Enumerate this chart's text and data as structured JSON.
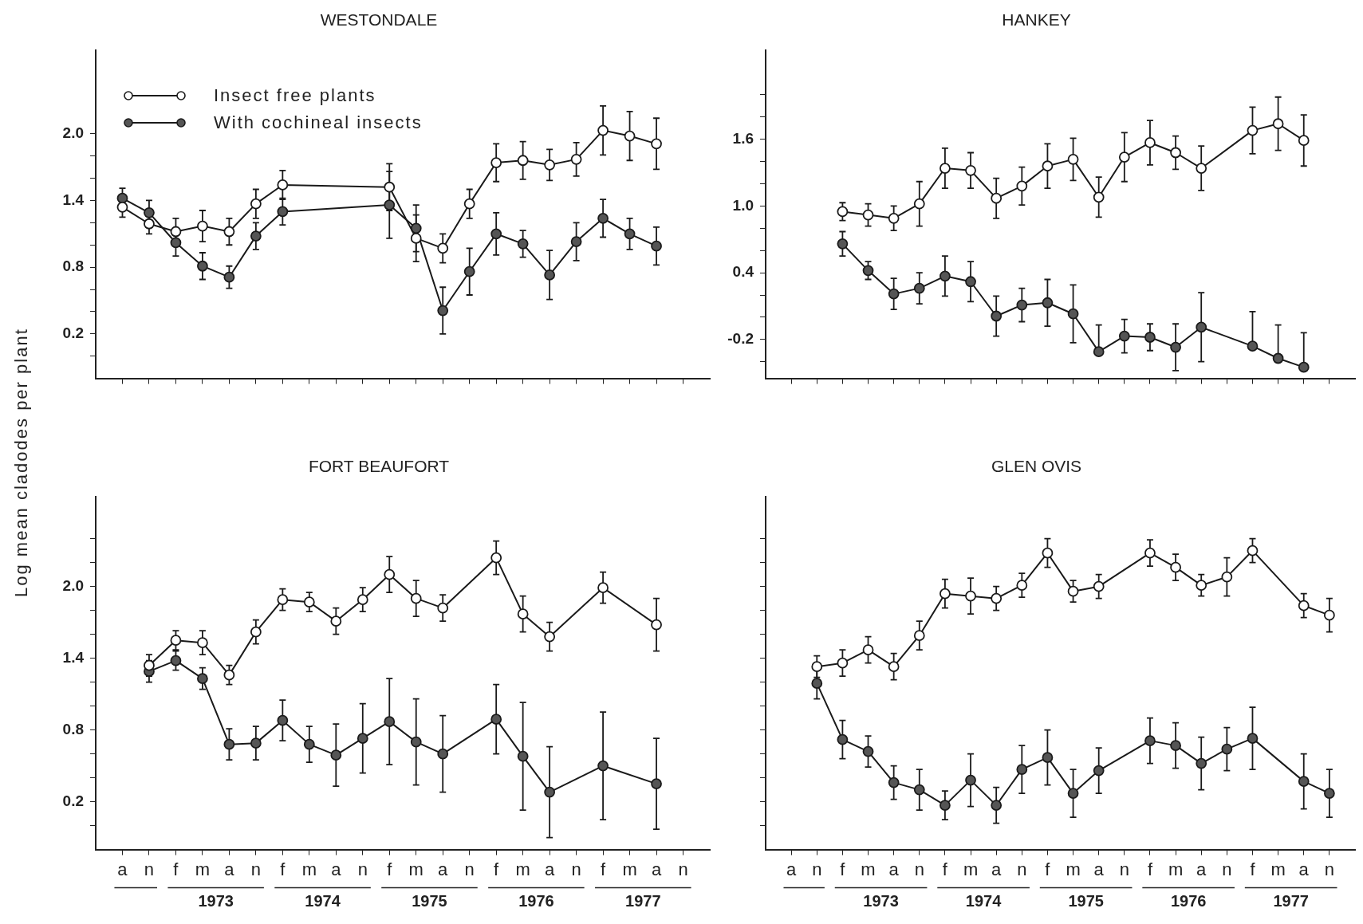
{
  "chart_data": [
    {
      "type": "line",
      "title": "WESTONDALE",
      "ylabel": "Log mean cladodes per plant",
      "legend": "top left",
      "marker": "circle",
      "line_style": "solid",
      "tick_labels": "y",
      "categories": [
        null,
        null,
        null,
        null,
        null,
        null,
        null,
        null,
        null,
        null,
        null,
        null,
        null,
        null,
        null,
        null,
        null,
        null,
        null,
        null,
        null,
        null
      ],
      "ylim": [
        -0.2,
        2.75
      ],
      "yticks": [
        {
          "value": 0,
          "label": null
        },
        {
          "value": 0.2,
          "label": "0.2"
        },
        {
          "value": 0.4,
          "label": null
        },
        {
          "value": 0.6,
          "label": null
        },
        {
          "value": 0.8,
          "label": "0.8"
        },
        {
          "value": 1,
          "label": null
        },
        {
          "value": 1.2,
          "label": null
        },
        {
          "value": 1.4,
          "label": "1.4"
        },
        {
          "value": 1.6,
          "label": null
        },
        {
          "value": 1.8,
          "label": null
        },
        {
          "value": 2,
          "label": "2.0"
        }
      ],
      "series": [
        {
          "name": "Insect free plants",
          "color": "#ffffff",
          "values": [
            1.34,
            1.19,
            1.12,
            1.17,
            1.12,
            1.37,
            1.54,
            null,
            null,
            null,
            1.52,
            1.06,
            0.97,
            1.37,
            1.74,
            1.76,
            1.72,
            1.77,
            2.03,
            1.98,
            1.91,
            null
          ],
          "errors": [
            0.09,
            0.09,
            0.12,
            0.14,
            0.12,
            0.13,
            0.13,
            null,
            null,
            null,
            0.21,
            0.21,
            0.13,
            0.13,
            0.17,
            0.17,
            0.14,
            0.15,
            0.22,
            0.22,
            0.23,
            null
          ]
        },
        {
          "name": "With cochineal insects",
          "color": "#555555",
          "values": [
            1.42,
            1.29,
            1.02,
            0.81,
            0.71,
            1.08,
            1.3,
            null,
            null,
            null,
            1.36,
            1.15,
            0.41,
            0.76,
            1.1,
            1.01,
            0.73,
            1.03,
            1.24,
            1.1,
            0.99,
            null
          ],
          "errors": [
            0.09,
            0.11,
            0.12,
            0.12,
            0.1,
            0.12,
            0.12,
            null,
            null,
            null,
            0.3,
            0.21,
            0.21,
            0.21,
            0.19,
            0.12,
            0.22,
            0.17,
            0.17,
            0.14,
            0.17,
            null
          ]
        }
      ]
    },
    {
      "type": "line",
      "title": "HANKEY",
      "marker": "circle",
      "line_style": "solid",
      "tick_labels": "y",
      "categories": [
        null,
        null,
        null,
        null,
        null,
        null,
        null,
        null,
        null,
        null,
        null,
        null,
        null,
        null,
        null,
        null,
        null,
        null,
        null,
        null,
        null,
        null
      ],
      "ylim": [
        -0.55,
        2.4
      ],
      "yticks": [
        {
          "value": -0.4,
          "label": null
        },
        -0.2,
        {
          "value": 0,
          "label": null
        },
        {
          "value": 0.2,
          "label": null
        },
        0.4,
        {
          "value": 0.6,
          "label": null
        },
        {
          "value": 0.8,
          "label": null
        },
        {
          "value": 1,
          "label": "1.0"
        },
        {
          "value": 1.2,
          "label": null
        },
        {
          "value": 1.4,
          "label": null
        },
        1.6,
        {
          "value": 1.8,
          "label": null
        },
        {
          "value": 2,
          "label": null
        }
      ],
      "series": [
        {
          "color": "#ffffff",
          "values": [
            null,
            null,
            0.95,
            0.92,
            0.89,
            1.02,
            1.34,
            1.32,
            1.07,
            1.18,
            1.36,
            1.42,
            1.08,
            1.44,
            1.57,
            1.48,
            1.34,
            null,
            1.68,
            1.74,
            1.59,
            null
          ],
          "errors": [
            null,
            null,
            0.08,
            0.1,
            0.11,
            0.2,
            0.18,
            0.16,
            0.18,
            0.17,
            0.2,
            0.19,
            0.18,
            0.22,
            0.2,
            0.15,
            0.2,
            null,
            0.21,
            0.24,
            0.23,
            null
          ]
        },
        {
          "color": "#555555",
          "values": [
            null,
            null,
            0.66,
            0.42,
            0.21,
            0.26,
            0.37,
            0.32,
            0.01,
            0.11,
            0.13,
            0.03,
            -0.31,
            -0.17,
            -0.18,
            -0.27,
            -0.09,
            null,
            -0.26,
            -0.37,
            -0.45,
            null
          ],
          "errors": [
            null,
            null,
            0.11,
            0.08,
            0.14,
            0.14,
            0.18,
            0.18,
            0.18,
            0.15,
            0.21,
            0.26,
            [
              -0.31,
              -0.07
            ],
            0.15,
            0.12,
            0.21,
            0.31,
            null,
            [
              -0.26,
              0.05
            ],
            [
              -0.37,
              -0.07
            ],
            [
              -0.45,
              -0.14
            ],
            null
          ]
        }
      ]
    },
    {
      "type": "line",
      "title": "FORT BEAUFORT",
      "marker": "circle",
      "line_style": "solid",
      "categories": [
        "a",
        "n",
        "f",
        "m",
        "a",
        "n",
        "f",
        "m",
        "a",
        "n",
        "f",
        "m",
        "a",
        "n",
        "f",
        "m",
        "a",
        "n",
        "f",
        "m",
        "a",
        "n"
      ],
      "annotations": [
        "1973",
        "1974",
        "1975",
        "1976",
        "1977"
      ],
      "ylim": [
        -0.2,
        2.75
      ],
      "yticks": [
        {
          "value": 0,
          "label": null
        },
        {
          "value": 0.2,
          "label": "0.2"
        },
        {
          "value": 0.4,
          "label": null
        },
        {
          "value": 0.6,
          "label": null
        },
        {
          "value": 0.8,
          "label": "0.8"
        },
        {
          "value": 1,
          "label": null
        },
        {
          "value": 1.2,
          "label": null
        },
        {
          "value": 1.4,
          "label": "1.4"
        },
        {
          "value": 1.6,
          "label": null
        },
        {
          "value": 1.8,
          "label": null
        },
        {
          "value": 2,
          "label": "2.0"
        },
        {
          "value": 2.2,
          "label": null
        },
        {
          "value": 2.4,
          "label": null
        }
      ],
      "series": [
        {
          "color": "#ffffff",
          "values": [
            null,
            1.34,
            1.55,
            1.53,
            1.26,
            1.62,
            1.89,
            1.87,
            1.71,
            1.89,
            2.1,
            1.9,
            1.82,
            null,
            2.24,
            1.77,
            1.58,
            null,
            1.99,
            null,
            1.68,
            null
          ],
          "errors": [
            null,
            0.09,
            0.08,
            0.1,
            0.08,
            0.1,
            0.09,
            0.08,
            0.11,
            0.1,
            0.15,
            0.15,
            0.11,
            null,
            0.14,
            0.15,
            0.12,
            null,
            0.13,
            null,
            0.22,
            null
          ]
        },
        {
          "color": "#555555",
          "values": [
            null,
            1.29,
            1.38,
            1.23,
            0.68,
            0.69,
            0.88,
            0.68,
            0.59,
            0.73,
            0.87,
            0.7,
            0.6,
            null,
            0.89,
            0.58,
            0.28,
            null,
            0.5,
            null,
            0.35,
            null
          ],
          "errors": [
            null,
            0.09,
            0.08,
            0.09,
            0.13,
            0.14,
            0.17,
            0.15,
            0.26,
            0.29,
            0.36,
            0.36,
            0.32,
            null,
            0.29,
            0.45,
            0.38,
            null,
            0.45,
            null,
            0.38,
            null
          ]
        }
      ]
    },
    {
      "type": "line",
      "title": "GLEN OVIS",
      "marker": "circle",
      "line_style": "solid",
      "tick_labels": "x",
      "categories": [
        "a",
        "n",
        "f",
        "m",
        "a",
        "n",
        "f",
        "m",
        "a",
        "n",
        "f",
        "m",
        "a",
        "n",
        "f",
        "m",
        "a",
        "n",
        "f",
        "m",
        "a",
        "n"
      ],
      "annotations": [
        "1973",
        "1974",
        "1975",
        "1976",
        "1977"
      ],
      "ylim": [
        -0.2,
        2.75
      ],
      "yticks": [
        {
          "value": 0,
          "label": null
        },
        {
          "value": 0.2,
          "label": null
        },
        {
          "value": 0.4,
          "label": null
        },
        {
          "value": 0.6,
          "label": null
        },
        {
          "value": 0.8,
          "label": null
        },
        {
          "value": 1,
          "label": null
        },
        {
          "value": 1.2,
          "label": null
        },
        {
          "value": 1.4,
          "label": null
        },
        {
          "value": 1.6,
          "label": null
        },
        {
          "value": 1.8,
          "label": null
        },
        {
          "value": 2,
          "label": null
        },
        {
          "value": 2.2,
          "label": null
        },
        {
          "value": 2.4,
          "label": null
        }
      ],
      "series": [
        {
          "color": "#ffffff",
          "values": [
            null,
            1.33,
            1.36,
            1.47,
            1.33,
            1.59,
            1.94,
            1.92,
            1.9,
            2.01,
            2.28,
            1.96,
            2.0,
            null,
            2.28,
            2.16,
            2.01,
            2.08,
            2.3,
            null,
            1.84,
            1.76
          ],
          "errors": [
            null,
            0.09,
            0.11,
            0.11,
            0.11,
            0.12,
            0.12,
            0.15,
            0.1,
            0.1,
            0.12,
            0.09,
            0.1,
            null,
            0.11,
            0.11,
            0.09,
            0.16,
            0.1,
            null,
            0.1,
            0.14
          ]
        },
        {
          "color": "#555555",
          "values": [
            null,
            1.19,
            0.72,
            0.62,
            0.36,
            0.3,
            0.17,
            0.38,
            0.17,
            0.47,
            0.57,
            0.27,
            0.46,
            null,
            0.71,
            0.67,
            0.52,
            0.64,
            0.73,
            null,
            0.37,
            0.27
          ],
          "errors": [
            null,
            0.13,
            0.16,
            0.13,
            0.14,
            0.17,
            0.12,
            0.22,
            0.15,
            0.2,
            0.23,
            0.2,
            0.19,
            null,
            0.19,
            0.19,
            0.22,
            0.18,
            0.26,
            null,
            0.23,
            0.2
          ]
        }
      ]
    }
  ]
}
